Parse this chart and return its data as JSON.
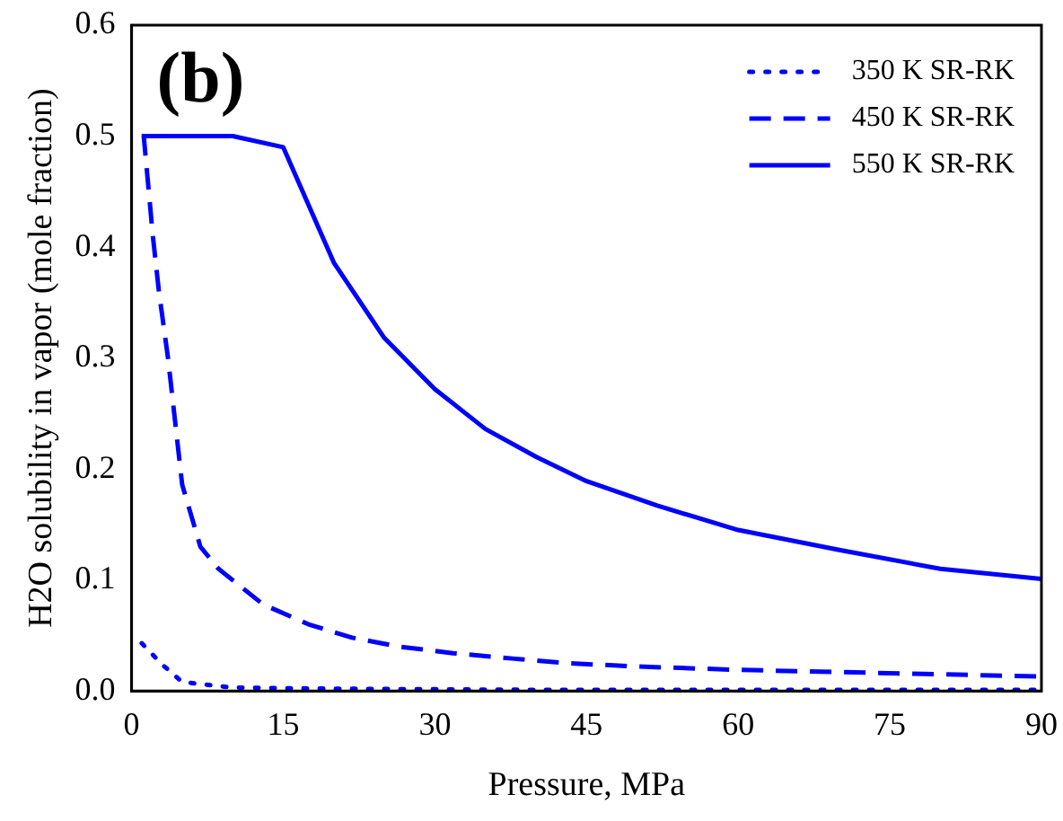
{
  "chart_data": {
    "type": "line",
    "xlabel": "Pressure, MPa",
    "ylabel": "H2O solubility in vapor (mole fraction)",
    "annotations": [
      "(b)"
    ],
    "xlim": [
      0,
      90
    ],
    "xticks": [
      0,
      15,
      30,
      45,
      60,
      75,
      90
    ],
    "ylim": [
      0,
      0.6
    ],
    "yticks": [
      {
        "value": 0,
        "label": "0.0"
      },
      {
        "value": 0.1,
        "label": "0.1"
      },
      {
        "value": 0.2,
        "label": "0.2"
      },
      {
        "value": 0.3,
        "label": "0.3"
      },
      {
        "value": 0.4,
        "label": "0.4"
      },
      {
        "value": 0.5,
        "label": "0.5"
      },
      {
        "value": 0.6,
        "label": "0.6"
      }
    ],
    "grid": false,
    "legend": "top right",
    "marker": "none",
    "series": [
      {
        "name": "350 K SR-RK",
        "color": "#0000ff",
        "line_style": "dotted",
        "x": [
          1,
          3,
          5,
          10,
          20,
          40,
          90
        ],
        "values": [
          0.043,
          0.024,
          0.008,
          0.003,
          0.002,
          0.001,
          0.001
        ]
      },
      {
        "name": "450 K SR-RK",
        "color": "#0000ff",
        "line_style": "dashed",
        "x": [
          1,
          1.2,
          2.1,
          2.7,
          3.6,
          5,
          6.8,
          8.6,
          13,
          17.5,
          21.8,
          26.4,
          31.8,
          37.9,
          43,
          50,
          60,
          70,
          80,
          90
        ],
        "values": [
          0.5,
          0.5,
          0.41,
          0.36,
          0.3,
          0.186,
          0.13,
          0.11,
          0.078,
          0.06,
          0.048,
          0.04,
          0.034,
          0.029,
          0.025,
          0.022,
          0.019,
          0.017,
          0.015,
          0.013
        ]
      },
      {
        "name": "550 K SR-RK",
        "color": "#0000ff",
        "line_style": "solid",
        "x": [
          1,
          1.2,
          10,
          15,
          20,
          25,
          30,
          35,
          40,
          45,
          52,
          60,
          70,
          80,
          90
        ],
        "values": [
          0.5,
          0.5,
          0.5,
          0.49,
          0.386,
          0.318,
          0.272,
          0.236,
          0.211,
          0.189,
          0.167,
          0.145,
          0.127,
          0.11,
          0.101
        ]
      }
    ]
  }
}
